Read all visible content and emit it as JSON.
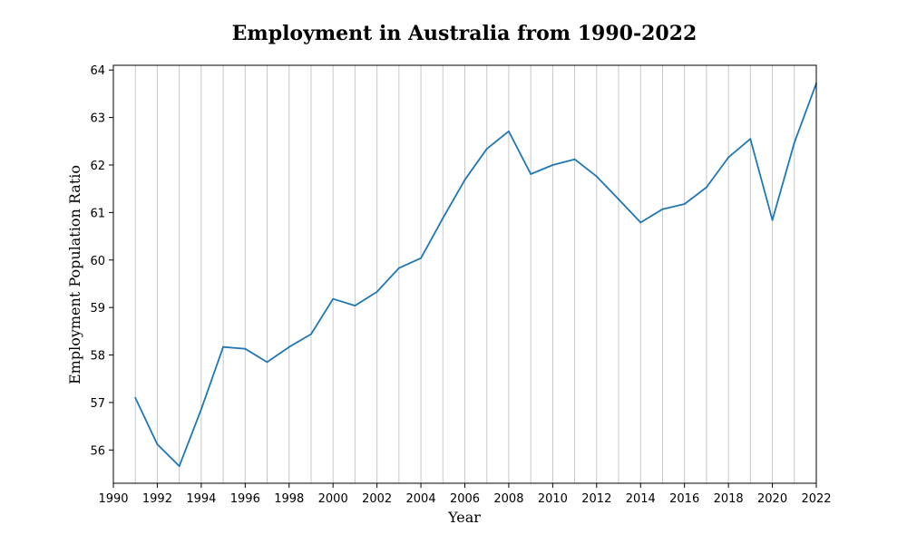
{
  "chart_data": {
    "type": "line",
    "title": "Employment in Australia from 1990-2022",
    "xlabel": "Year",
    "ylabel": "Employment Population Ratio",
    "xlim": [
      1990,
      2022
    ],
    "ylim": [
      55.3,
      64.1
    ],
    "x_ticks": [
      1990,
      1992,
      1994,
      1996,
      1998,
      2000,
      2002,
      2004,
      2006,
      2008,
      2010,
      2012,
      2014,
      2016,
      2018,
      2020,
      2022
    ],
    "y_ticks": [
      56,
      57,
      58,
      59,
      60,
      61,
      62,
      63,
      64
    ],
    "grid": "vertical lines at every year",
    "line_color": "#1f77b4",
    "grid_color": "#c8c8c8",
    "series": [
      {
        "x": [
          1991,
          1992,
          1993,
          1994,
          1995,
          1996,
          1997,
          1998,
          1999,
          2000,
          2001,
          2002,
          2003,
          2004,
          2005,
          2006,
          2007,
          2008,
          2009,
          2010,
          2011,
          2012,
          2013,
          2014,
          2015,
          2016,
          2017,
          2018,
          2019,
          2020,
          2021,
          2022
        ],
        "values": [
          57.1,
          56.12,
          55.66,
          56.86,
          58.17,
          58.13,
          57.85,
          58.17,
          58.44,
          59.18,
          59.04,
          59.33,
          59.83,
          60.04,
          60.88,
          61.69,
          62.34,
          62.71,
          61.81,
          62.0,
          62.12,
          61.76,
          61.28,
          60.79,
          61.07,
          61.18,
          61.53,
          62.16,
          62.55,
          60.84,
          62.47,
          63.72
        ]
      }
    ]
  }
}
